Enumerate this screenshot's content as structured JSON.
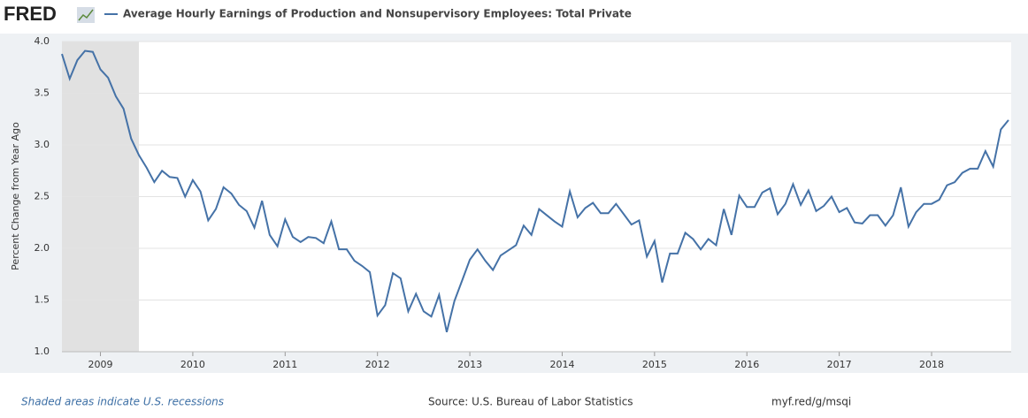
{
  "logo": "FRED",
  "chart_data": {
    "type": "line",
    "y_label": "Percent Change from Year Ago",
    "x": [
      2008.583,
      2008.667,
      2008.75,
      2008.833,
      2008.917,
      2009,
      2009.083,
      2009.167,
      2009.25,
      2009.333,
      2009.417,
      2009.5,
      2009.583,
      2009.667,
      2009.75,
      2009.833,
      2009.917,
      2010,
      2010.083,
      2010.167,
      2010.25,
      2010.333,
      2010.417,
      2010.5,
      2010.583,
      2010.667,
      2010.75,
      2010.833,
      2010.917,
      2011,
      2011.083,
      2011.167,
      2011.25,
      2011.333,
      2011.417,
      2011.5,
      2011.583,
      2011.667,
      2011.75,
      2011.833,
      2011.917,
      2012,
      2012.083,
      2012.167,
      2012.25,
      2012.333,
      2012.417,
      2012.5,
      2012.583,
      2012.667,
      2012.75,
      2012.833,
      2012.917,
      2013,
      2013.083,
      2013.167,
      2013.25,
      2013.333,
      2013.417,
      2013.5,
      2013.583,
      2013.667,
      2013.75,
      2013.833,
      2013.917,
      2014,
      2014.083,
      2014.167,
      2014.25,
      2014.333,
      2014.417,
      2014.5,
      2014.583,
      2014.667,
      2014.75,
      2014.833,
      2014.917,
      2015,
      2015.083,
      2015.167,
      2015.25,
      2015.333,
      2015.417,
      2015.5,
      2015.583,
      2015.667,
      2015.75,
      2015.833,
      2015.917,
      2016,
      2016.083,
      2016.167,
      2016.25,
      2016.333,
      2016.417,
      2016.5,
      2016.583,
      2016.667,
      2016.75,
      2016.833,
      2016.917,
      2017,
      2017.083,
      2017.167,
      2017.25,
      2017.333,
      2017.417,
      2017.5,
      2017.583,
      2017.667,
      2017.75,
      2017.833,
      2017.917,
      2018,
      2018.083,
      2018.167,
      2018.25,
      2018.333,
      2018.417,
      2018.5,
      2018.583,
      2018.667,
      2018.75,
      2018.833
    ],
    "series": [
      {
        "name": "Average Hourly Earnings of Production and Nonsupervisory Employees: Total Private",
        "color": "#4572a7",
        "values": [
          3.88,
          3.64,
          3.82,
          3.91,
          3.9,
          3.73,
          3.65,
          3.47,
          3.35,
          3.06,
          2.9,
          2.78,
          2.64,
          2.75,
          2.69,
          2.68,
          2.5,
          2.66,
          2.55,
          2.27,
          2.38,
          2.59,
          2.53,
          2.42,
          2.36,
          2.2,
          2.46,
          2.13,
          2.02,
          2.28,
          2.11,
          2.06,
          2.11,
          2.1,
          2.05,
          2.26,
          1.99,
          1.99,
          1.88,
          1.83,
          1.77,
          1.35,
          1.45,
          1.76,
          1.71,
          1.39,
          1.56,
          1.39,
          1.34,
          1.55,
          1.19,
          1.49,
          1.69,
          1.89,
          1.99,
          1.88,
          1.79,
          1.93,
          1.98,
          2.03,
          2.22,
          2.13,
          2.38,
          2.32,
          2.26,
          2.21,
          2.55,
          2.3,
          2.39,
          2.44,
          2.34,
          2.34,
          2.43,
          2.33,
          2.23,
          2.27,
          1.92,
          2.07,
          1.67,
          1.95,
          1.95,
          2.15,
          2.09,
          1.99,
          2.09,
          2.03,
          2.38,
          2.13,
          2.51,
          2.4,
          2.4,
          2.54,
          2.58,
          2.33,
          2.43,
          2.62,
          2.42,
          2.56,
          2.36,
          2.41,
          2.5,
          2.35,
          2.39,
          2.25,
          2.24,
          2.32,
          2.32,
          2.22,
          2.32,
          2.59,
          2.21,
          2.35,
          2.43,
          2.43,
          2.47,
          2.61,
          2.64,
          2.73,
          2.77,
          2.77,
          2.94,
          2.79,
          3.15,
          3.24
        ]
      }
    ],
    "recession": [
      2008.583,
      2009.417
    ],
    "xlim": [
      2008.583,
      2018.862
    ],
    "xticks": [
      2009,
      2010,
      2011,
      2012,
      2013,
      2014,
      2015,
      2016,
      2017,
      2018
    ],
    "ylim": [
      1.0,
      4.0
    ],
    "yticks": [
      {
        "value": 1.0,
        "label": "1.0"
      },
      {
        "value": 1.5,
        "label": "1.5"
      },
      {
        "value": 2.0,
        "label": "2.0"
      },
      {
        "value": 2.5,
        "label": "2.5"
      },
      {
        "value": 3.0,
        "label": "3.0"
      },
      {
        "value": 3.5,
        "label": "3.5"
      },
      {
        "value": 4.0,
        "label": "4.0"
      }
    ],
    "grid": true,
    "recession_note": "Shaded areas indicate U.S. recessions",
    "source": "Source: U.S. Bureau of Labor Statistics",
    "short_url": "myf.red/g/msqi"
  }
}
